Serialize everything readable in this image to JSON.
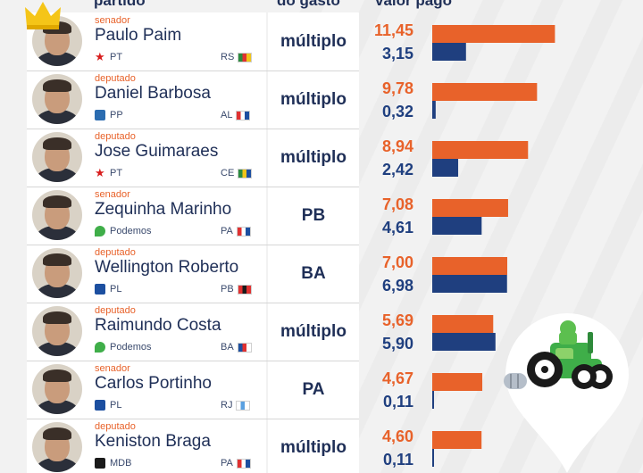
{
  "headers": {
    "partido": "partido",
    "estado": "do gasto",
    "valor": "valor pago"
  },
  "colors": {
    "orange": "#e8622a",
    "navy": "#1f3f7f"
  },
  "chart_data": {
    "type": "bar",
    "orientation": "horizontal",
    "categories": [
      "Paulo Paim",
      "Daniel Barbosa",
      "Jose Guimaraes",
      "Zequinha Marinho",
      "Wellington Roberto",
      "Raimundo Costa",
      "Carlos Portinho",
      "Keniston Braga"
    ],
    "series": [
      {
        "color": "#e8622a",
        "values": [
          11.45,
          9.78,
          8.94,
          7.08,
          7.0,
          5.69,
          4.67,
          4.6
        ]
      },
      {
        "name": "valor pago",
        "color": "#1f3f7f",
        "values": [
          3.15,
          0.32,
          2.42,
          4.61,
          6.98,
          5.9,
          0.11,
          0.11
        ]
      }
    ],
    "xlim": [
      0,
      12.5
    ],
    "grid": false,
    "legend": "none"
  },
  "rows": [
    {
      "role": "senador",
      "name": "Paulo Paim",
      "party": "PT",
      "party_icon": "pt-star-icon",
      "party_color": "#d81e1e",
      "state": "RS",
      "flag_colors": [
        "#2b8a3e",
        "#e03131",
        "#f0c419"
      ],
      "local": "múltiplo",
      "v_emp": "11,45",
      "v_pago": "3,15"
    },
    {
      "role": "deputado",
      "name": "Daniel Barbosa",
      "party": "PP",
      "party_icon": "pp-icon",
      "party_color": "#2b6cb0",
      "state": "AL",
      "flag_colors": [
        "#e03131",
        "#ffffff",
        "#1c4fa0"
      ],
      "local": "múltiplo",
      "v_emp": "9,78",
      "v_pago": "0,32"
    },
    {
      "role": "deputado",
      "name": "Jose Guimaraes",
      "party": "PT",
      "party_icon": "pt-star-icon",
      "party_color": "#d81e1e",
      "state": "CE",
      "flag_colors": [
        "#2b8a3e",
        "#f0c419",
        "#1c4fa0"
      ],
      "local": "múltiplo",
      "v_emp": "8,94",
      "v_pago": "2,42"
    },
    {
      "role": "senador",
      "name": "Zequinha Marinho",
      "party": "Podemos",
      "party_icon": "podemos-icon",
      "party_color": "#3fae49",
      "state": "PA",
      "flag_colors": [
        "#e03131",
        "#ffffff",
        "#1c4fa0"
      ],
      "local": "PB",
      "v_emp": "7,08",
      "v_pago": "4,61"
    },
    {
      "role": "deputado",
      "name": "Wellington Roberto",
      "party": "PL",
      "party_icon": "pl-icon",
      "party_color": "#1c4fa0",
      "state": "PB",
      "flag_colors": [
        "#e03131",
        "#1a1a1a",
        "#e03131"
      ],
      "local": "BA",
      "v_emp": "7,00",
      "v_pago": "6,98"
    },
    {
      "role": "deputado",
      "name": "Raimundo Costa",
      "party": "Podemos",
      "party_icon": "podemos-icon",
      "party_color": "#3fae49",
      "state": "BA",
      "flag_colors": [
        "#1c4fa0",
        "#e03131",
        "#ffffff"
      ],
      "local": "múltiplo",
      "v_emp": "5,69",
      "v_pago": "5,90"
    },
    {
      "role": "senador",
      "name": "Carlos Portinho",
      "party": "PL",
      "party_icon": "pl-icon",
      "party_color": "#1c4fa0",
      "state": "RJ",
      "flag_colors": [
        "#ffffff",
        "#5aa0e0",
        "#ffffff"
      ],
      "local": "PA",
      "v_emp": "4,67",
      "v_pago": "0,11"
    },
    {
      "role": "deputado",
      "name": "Keniston Braga",
      "party": "MDB",
      "party_icon": "mdb-icon",
      "party_color": "#1a1a1a",
      "state": "PA",
      "flag_colors": [
        "#e03131",
        "#ffffff",
        "#1c4fa0"
      ],
      "local": "múltiplo",
      "v_emp": "4,60",
      "v_pago": "0,11"
    }
  ],
  "decorations": {
    "crown_icon": "crown-icon",
    "tractor_icon": "tractor-pin-icon"
  }
}
